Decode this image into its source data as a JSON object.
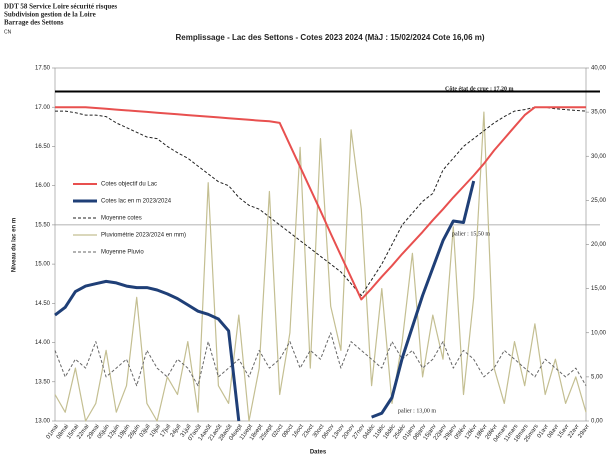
{
  "header": {
    "lines": [
      "DDT 58 Service Loire sécurité risques",
      "Subdivision gestion de la Loire",
      "Barrage des Settons"
    ],
    "code": "CN"
  },
  "chart_data": {
    "type": "line",
    "title": "Remplissage - Lac des Settons - Cotes  2023 2024 (MàJ : 15/02/2024 Cote 16,06 m)",
    "y_label": "Niveau du lac en m",
    "x_label": "Dates",
    "categories": [
      "01mai",
      "08mai",
      "15mai",
      "22mai",
      "29mai",
      "05juin",
      "12juin",
      "19juin",
      "26juin",
      "03juil",
      "10juil",
      "17juil",
      "24juil",
      "31juil",
      "07août",
      "14août",
      "21août",
      "28août",
      "04sept",
      "11sept",
      "18sept",
      "25sept",
      "02oct",
      "09oct",
      "16oct",
      "23oct",
      "30oct",
      "06nov",
      "13nov",
      "20nov",
      "27nov",
      "04déc",
      "11déc",
      "18déc",
      "25déc",
      "01janv",
      "08janv",
      "15janv",
      "22janv",
      "29janv",
      "05févr",
      "12févr",
      "19févr",
      "26févr",
      "04mars",
      "11mars",
      "18mars",
      "25mars",
      "01avr",
      "08avr",
      "15avr",
      "22avr",
      "29avr"
    ],
    "series": [
      {
        "name": "Cotes objectif du Lac",
        "color": "#e8504f",
        "style": "solid",
        "width": 2,
        "values": [
          17.0,
          17.0,
          17.0,
          17.0,
          16.99,
          16.98,
          16.97,
          16.96,
          16.95,
          16.94,
          16.93,
          16.92,
          16.91,
          16.9,
          16.89,
          16.88,
          16.87,
          16.86,
          16.85,
          16.84,
          16.83,
          16.82,
          16.8,
          16.52,
          16.24,
          15.96,
          15.68,
          15.39,
          15.11,
          14.83,
          14.55,
          14.69,
          14.84,
          14.98,
          15.13,
          15.27,
          15.41,
          15.56,
          15.7,
          15.85,
          15.99,
          16.13,
          16.28,
          16.45,
          16.6,
          16.75,
          16.9,
          17.0,
          17.0,
          17.0,
          17.0,
          17.0,
          17.0
        ]
      },
      {
        "name": "Cotes lac en m 2023/2024",
        "color": "#1f3f77",
        "style": "solid",
        "width": 3,
        "values": [
          14.35,
          14.45,
          14.65,
          14.72,
          14.75,
          14.78,
          14.76,
          14.72,
          14.7,
          14.7,
          14.67,
          14.62,
          14.56,
          14.48,
          14.4,
          14.36,
          14.3,
          14.15,
          13.0,
          null,
          null,
          null,
          null,
          null,
          null,
          null,
          null,
          null,
          null,
          null,
          null,
          13.05,
          13.1,
          13.3,
          13.8,
          14.2,
          14.6,
          14.95,
          15.3,
          15.55,
          15.53,
          16.06,
          null,
          null,
          null,
          null,
          null,
          null,
          null,
          null,
          null,
          null,
          null
        ]
      },
      {
        "name": "Moyenne cotes",
        "color": "#222222",
        "style": "dashed",
        "width": 1,
        "values": [
          16.95,
          16.95,
          16.93,
          16.9,
          16.9,
          16.88,
          16.8,
          16.74,
          16.68,
          16.62,
          16.6,
          16.5,
          16.42,
          16.35,
          16.25,
          16.15,
          16.05,
          16.0,
          15.85,
          15.75,
          15.7,
          15.6,
          15.5,
          15.4,
          15.3,
          15.2,
          15.1,
          15.0,
          14.9,
          14.75,
          14.6,
          14.8,
          15.0,
          15.25,
          15.5,
          15.65,
          15.8,
          15.9,
          16.2,
          16.35,
          16.5,
          16.6,
          16.7,
          16.8,
          16.88,
          16.95,
          16.97,
          17.0,
          17.0,
          16.98,
          16.97,
          16.96,
          16.95
        ]
      },
      {
        "name": "Pluviométrie 2023/2024 en mm)",
        "color": "#c4bf92",
        "style": "solid",
        "width": 1.2,
        "axis": "y2",
        "values": [
          3,
          1,
          6,
          0,
          2,
          8,
          1,
          4,
          14,
          2,
          0,
          5,
          3,
          9,
          1,
          27,
          4,
          2,
          12,
          0,
          6,
          26,
          3,
          10,
          31,
          6,
          32,
          13,
          8,
          33,
          24,
          4,
          15,
          2,
          9,
          19,
          5,
          12,
          7,
          22,
          3,
          14,
          35,
          6,
          2,
          9,
          4,
          11,
          3,
          7,
          2,
          5,
          1
        ]
      },
      {
        "name": "Moyenne Pluvio",
        "color": "#666666",
        "style": "dashed",
        "width": 1,
        "axis": "y2",
        "values": [
          8,
          5,
          7,
          6,
          9,
          5,
          6,
          7,
          4,
          8,
          6,
          5,
          7,
          6,
          4,
          9,
          5,
          6,
          7,
          5,
          8,
          6,
          7,
          9,
          6,
          8,
          7,
          10,
          6,
          9,
          8,
          7,
          6,
          9,
          7,
          8,
          6,
          7,
          9,
          6,
          8,
          7,
          5,
          6,
          8,
          7,
          6,
          5,
          7,
          6,
          5,
          6,
          4
        ]
      }
    ],
    "ylim": [
      13.0,
      17.5
    ],
    "yticks": [
      {
        "value": 13.0,
        "label": "13.00"
      },
      {
        "value": 13.5,
        "label": "13.50"
      },
      {
        "value": 14.0,
        "label": "14.00"
      },
      {
        "value": 14.5,
        "label": "14.50"
      },
      {
        "value": 15.0,
        "label": "15.00"
      },
      {
        "value": 15.5,
        "label": "15.50"
      },
      {
        "value": 16.0,
        "label": "16.00"
      },
      {
        "value": 16.5,
        "label": "16.50"
      },
      {
        "value": 17.0,
        "label": "17.00"
      },
      {
        "value": 17.5,
        "label": "17.50"
      }
    ],
    "y2lim": [
      0,
      40
    ],
    "y2ticks": [
      {
        "value": 0,
        "label": "0,00"
      },
      {
        "value": 5,
        "label": "5,00"
      },
      {
        "value": 10,
        "label": "10,00"
      },
      {
        "value": 15,
        "label": "15,00"
      },
      {
        "value": 20,
        "label": "20,00"
      },
      {
        "value": 25,
        "label": "25,00"
      },
      {
        "value": 30,
        "label": "30,00"
      },
      {
        "value": 35,
        "label": "35,00"
      },
      {
        "value": 40,
        "label": "40,00"
      }
    ],
    "hlines": [
      17.2,
      15.5
    ],
    "annotations": [
      "Côte état de crue : 17,20 m",
      "palier : 15,50 m",
      "palier : 13,00 m"
    ],
    "grid": false,
    "legend": "left"
  }
}
